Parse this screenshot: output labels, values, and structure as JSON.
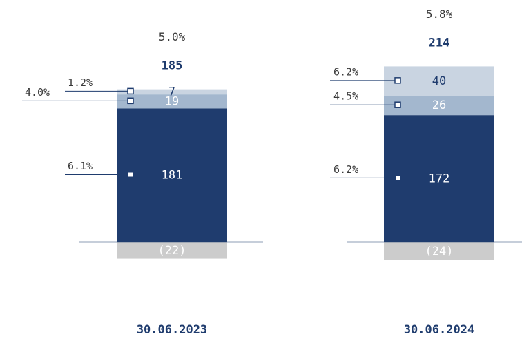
{
  "colors": {
    "primary": "#1f3c6e",
    "secondary": "#a3b7ce",
    "tertiary": "#c9d4e1",
    "negative": "#cccccc",
    "text": "#3a3a3a",
    "line": "#1f3c6e"
  },
  "chart_data": {
    "type": "bar",
    "stacked": true,
    "categories": [
      "30.06.2023",
      "30.06.2024"
    ],
    "series": [
      {
        "key": "neg",
        "values": [
          -22,
          -24
        ],
        "labels": [
          "(22)",
          "(24)"
        ],
        "color": "negative",
        "marker": "none"
      },
      {
        "key": "main",
        "values": [
          181,
          172
        ],
        "labels": [
          "181",
          "172"
        ],
        "rates": [
          "6.1%",
          "6.2%"
        ],
        "color": "primary",
        "marker": "filled"
      },
      {
        "key": "mid",
        "values": [
          19,
          26
        ],
        "labels": [
          "19",
          "26"
        ],
        "rates": [
          "4.0%",
          "4.5%"
        ],
        "color": "secondary",
        "marker": "hollow"
      },
      {
        "key": "top",
        "values": [
          7,
          40
        ],
        "labels": [
          "7",
          "40"
        ],
        "rates": [
          "1.2%",
          "6.2%"
        ],
        "color": "tertiary",
        "marker": "hollow"
      }
    ],
    "totals": [
      "185",
      "214"
    ],
    "total_rates": [
      "5.0%",
      "5.8%"
    ]
  }
}
